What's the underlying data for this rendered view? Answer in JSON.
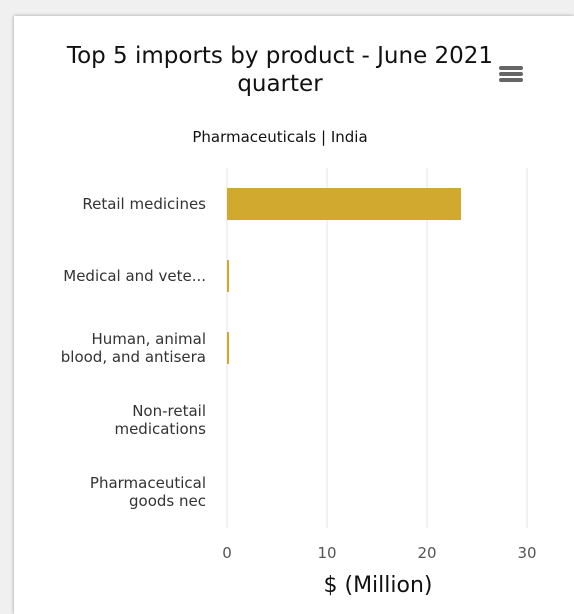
{
  "chart_data": {
    "type": "bar",
    "orientation": "horizontal",
    "title_lines": [
      "Top 5 imports by product - June 2021",
      "quarter"
    ],
    "subtitle": "Pharmaceuticals | India",
    "categories": [
      [
        "Retail medicines"
      ],
      [
        "Medical and vete..."
      ],
      [
        "Human, animal",
        "blood, and antisera"
      ],
      [
        "Non-retail",
        "medications"
      ],
      [
        "Pharmaceutical",
        "goods nec"
      ]
    ],
    "values": [
      23.4,
      0.2,
      0.2,
      0,
      0
    ],
    "xlabel": "$ (Million)",
    "xlim": [
      0,
      30
    ],
    "xticks": [
      0,
      10,
      20,
      30
    ],
    "bar_color": "#d0a92e",
    "grid": true,
    "legend": "none"
  },
  "toolbar": {
    "menu_icon": "hamburger-menu-icon"
  }
}
